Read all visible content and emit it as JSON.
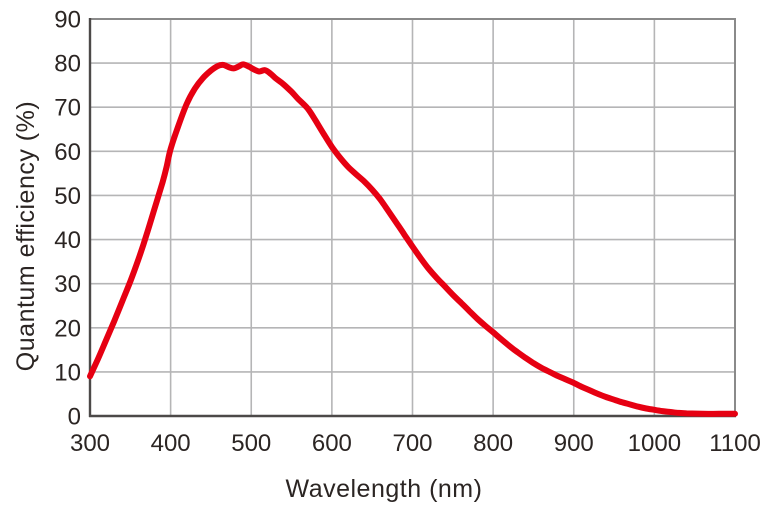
{
  "figure": {
    "background": "#ffffff"
  },
  "style": {
    "curve_color": "#e60012",
    "grid_color": "#b5b5b6",
    "frame_color": "#8a8a8a",
    "axis_color": "#4c4948",
    "text_color": "#2b2523",
    "curve_width": 6
  },
  "chart_data": {
    "type": "line",
    "title": "",
    "xlabel": "Wavelength (nm)",
    "ylabel": "Quantum efficiency (%)",
    "xlim": [
      300,
      1100
    ],
    "ylim": [
      0,
      90
    ],
    "x_ticks": [
      300,
      400,
      500,
      600,
      700,
      800,
      900,
      1000,
      1100
    ],
    "y_ticks": [
      0,
      10,
      20,
      30,
      40,
      50,
      60,
      70,
      80,
      90
    ],
    "grid": true,
    "legend": "none",
    "series": [
      {
        "name": "quantum-efficiency",
        "color": "#e60012",
        "points": [
          [
            300,
            9.0
          ],
          [
            310,
            13.0
          ],
          [
            320,
            17.2
          ],
          [
            330,
            21.5
          ],
          [
            340,
            26.0
          ],
          [
            350,
            30.5
          ],
          [
            360,
            35.5
          ],
          [
            370,
            41.0
          ],
          [
            380,
            47.0
          ],
          [
            390,
            53.0
          ],
          [
            395,
            56.5
          ],
          [
            400,
            60.5
          ],
          [
            410,
            66.0
          ],
          [
            420,
            70.8
          ],
          [
            430,
            74.2
          ],
          [
            440,
            76.6
          ],
          [
            450,
            78.3
          ],
          [
            458,
            79.3
          ],
          [
            465,
            79.6
          ],
          [
            472,
            79.1
          ],
          [
            478,
            78.8
          ],
          [
            484,
            79.2
          ],
          [
            490,
            79.7
          ],
          [
            497,
            79.2
          ],
          [
            504,
            78.5
          ],
          [
            510,
            78.1
          ],
          [
            517,
            78.4
          ],
          [
            524,
            77.6
          ],
          [
            530,
            76.6
          ],
          [
            540,
            75.2
          ],
          [
            550,
            73.5
          ],
          [
            558,
            71.9
          ],
          [
            570,
            69.7
          ],
          [
            580,
            66.9
          ],
          [
            590,
            63.9
          ],
          [
            600,
            61.0
          ],
          [
            610,
            58.6
          ],
          [
            620,
            56.5
          ],
          [
            630,
            54.8
          ],
          [
            640,
            53.2
          ],
          [
            650,
            51.3
          ],
          [
            660,
            49.1
          ],
          [
            670,
            46.5
          ],
          [
            680,
            43.8
          ],
          [
            690,
            41.1
          ],
          [
            700,
            38.4
          ],
          [
            710,
            35.8
          ],
          [
            720,
            33.4
          ],
          [
            730,
            31.3
          ],
          [
            740,
            29.4
          ],
          [
            750,
            27.5
          ],
          [
            760,
            25.7
          ],
          [
            770,
            23.9
          ],
          [
            780,
            22.1
          ],
          [
            790,
            20.5
          ],
          [
            800,
            19.0
          ],
          [
            810,
            17.4
          ],
          [
            820,
            15.9
          ],
          [
            830,
            14.5
          ],
          [
            840,
            13.2
          ],
          [
            850,
            12.0
          ],
          [
            860,
            10.9
          ],
          [
            870,
            10.0
          ],
          [
            880,
            9.1
          ],
          [
            890,
            8.3
          ],
          [
            900,
            7.5
          ],
          [
            910,
            6.6
          ],
          [
            920,
            5.8
          ],
          [
            930,
            5.0
          ],
          [
            940,
            4.3
          ],
          [
            950,
            3.7
          ],
          [
            960,
            3.1
          ],
          [
            970,
            2.6
          ],
          [
            980,
            2.1
          ],
          [
            990,
            1.7
          ],
          [
            1000,
            1.4
          ],
          [
            1010,
            1.1
          ],
          [
            1020,
            0.9
          ],
          [
            1030,
            0.7
          ],
          [
            1040,
            0.6
          ],
          [
            1060,
            0.5
          ],
          [
            1080,
            0.5
          ],
          [
            1100,
            0.5
          ]
        ]
      }
    ]
  }
}
